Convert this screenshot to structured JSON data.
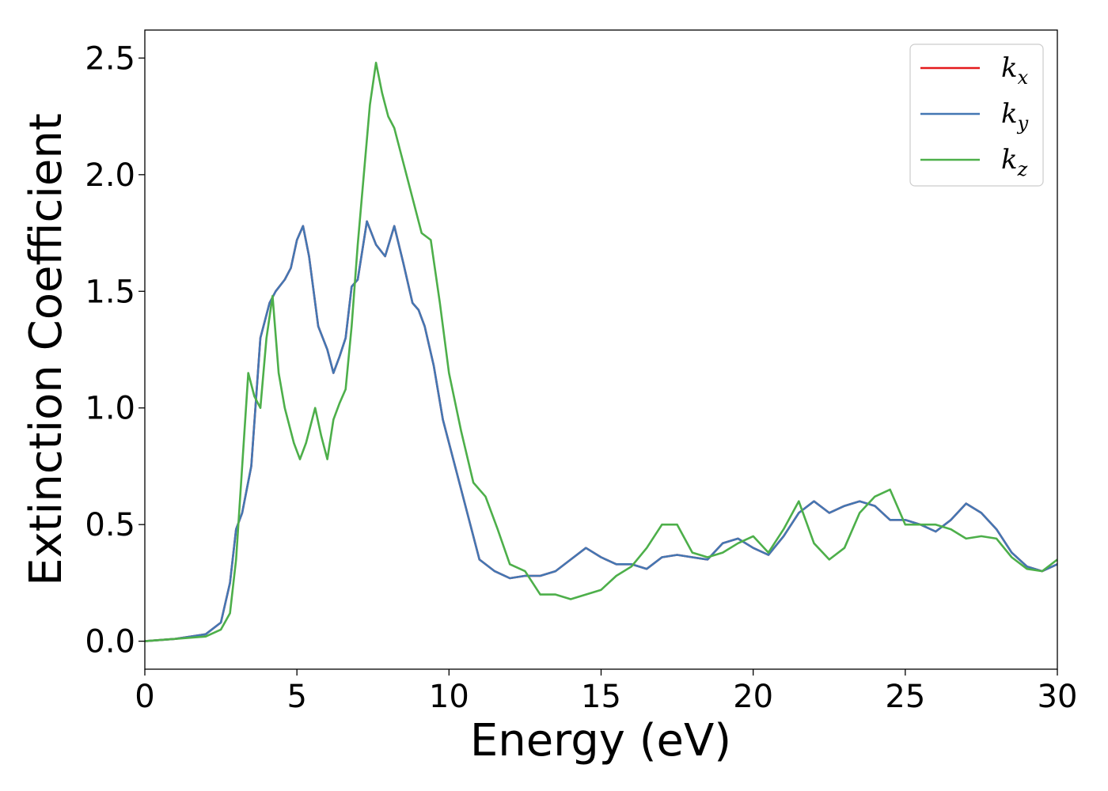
{
  "chart_data": {
    "type": "line",
    "xlabel": "Energy (eV)",
    "ylabel": "Extinction Coefficient",
    "xlim": [
      0,
      30
    ],
    "ylim": [
      -0.12,
      2.62
    ],
    "xticks": [
      0,
      5,
      10,
      15,
      20,
      25,
      30
    ],
    "xtick_labels": [
      "0",
      "5",
      "10",
      "15",
      "20",
      "25",
      "30"
    ],
    "yticks": [
      0.0,
      0.5,
      1.0,
      1.5,
      2.0,
      2.5
    ],
    "ytick_labels": [
      "0.0",
      "0.5",
      "1.0",
      "1.5",
      "2.0",
      "2.5"
    ],
    "grid": false,
    "legend_position": "top-right",
    "series": [
      {
        "name": "k_x",
        "legend_base": "k",
        "legend_sub": "x",
        "color": "#e41a1c",
        "x": [
          0,
          1,
          2,
          2.5,
          2.8,
          3.0,
          3.2,
          3.5,
          3.8,
          4.1,
          4.3,
          4.6,
          4.8,
          5.0,
          5.2,
          5.4,
          5.7,
          6.0,
          6.2,
          6.4,
          6.6,
          6.8,
          7.0,
          7.3,
          7.6,
          7.9,
          8.2,
          8.5,
          8.8,
          9.0,
          9.2,
          9.5,
          9.8,
          10.2,
          10.6,
          11.0,
          11.5,
          12.0,
          12.5,
          13.0,
          13.5,
          14.0,
          14.5,
          15.0,
          15.5,
          16.0,
          16.5,
          17.0,
          17.5,
          18.0,
          18.5,
          19.0,
          19.5,
          20.0,
          20.5,
          21.0,
          21.5,
          22.0,
          22.5,
          23.0,
          23.5,
          24.0,
          24.5,
          25.0,
          25.5,
          26.0,
          26.5,
          27.0,
          27.5,
          28.0,
          28.5,
          29.0,
          29.5,
          30.0
        ],
        "y": [
          0.0,
          0.01,
          0.03,
          0.08,
          0.25,
          0.48,
          0.55,
          0.75,
          1.3,
          1.45,
          1.5,
          1.55,
          1.6,
          1.72,
          1.78,
          1.65,
          1.35,
          1.25,
          1.15,
          1.22,
          1.3,
          1.52,
          1.55,
          1.8,
          1.7,
          1.65,
          1.78,
          1.62,
          1.45,
          1.42,
          1.35,
          1.18,
          0.95,
          0.75,
          0.55,
          0.35,
          0.3,
          0.27,
          0.28,
          0.28,
          0.3,
          0.35,
          0.4,
          0.36,
          0.33,
          0.33,
          0.31,
          0.36,
          0.37,
          0.36,
          0.35,
          0.42,
          0.44,
          0.4,
          0.37,
          0.45,
          0.55,
          0.6,
          0.55,
          0.58,
          0.6,
          0.58,
          0.52,
          0.52,
          0.5,
          0.47,
          0.52,
          0.59,
          0.55,
          0.48,
          0.38,
          0.32,
          0.3,
          0.33
        ]
      },
      {
        "name": "k_y",
        "legend_base": "k",
        "legend_sub": "y",
        "color": "#4377b3",
        "x": [
          0,
          1,
          2,
          2.5,
          2.8,
          3.0,
          3.2,
          3.5,
          3.8,
          4.1,
          4.3,
          4.6,
          4.8,
          5.0,
          5.2,
          5.4,
          5.7,
          6.0,
          6.2,
          6.4,
          6.6,
          6.8,
          7.0,
          7.3,
          7.6,
          7.9,
          8.2,
          8.5,
          8.8,
          9.0,
          9.2,
          9.5,
          9.8,
          10.2,
          10.6,
          11.0,
          11.5,
          12.0,
          12.5,
          13.0,
          13.5,
          14.0,
          14.5,
          15.0,
          15.5,
          16.0,
          16.5,
          17.0,
          17.5,
          18.0,
          18.5,
          19.0,
          19.5,
          20.0,
          20.5,
          21.0,
          21.5,
          22.0,
          22.5,
          23.0,
          23.5,
          24.0,
          24.5,
          25.0,
          25.5,
          26.0,
          26.5,
          27.0,
          27.5,
          28.0,
          28.5,
          29.0,
          29.5,
          30.0
        ],
        "y": [
          0.0,
          0.01,
          0.03,
          0.08,
          0.25,
          0.48,
          0.55,
          0.75,
          1.3,
          1.45,
          1.5,
          1.55,
          1.6,
          1.72,
          1.78,
          1.65,
          1.35,
          1.25,
          1.15,
          1.22,
          1.3,
          1.52,
          1.55,
          1.8,
          1.7,
          1.65,
          1.78,
          1.62,
          1.45,
          1.42,
          1.35,
          1.18,
          0.95,
          0.75,
          0.55,
          0.35,
          0.3,
          0.27,
          0.28,
          0.28,
          0.3,
          0.35,
          0.4,
          0.36,
          0.33,
          0.33,
          0.31,
          0.36,
          0.37,
          0.36,
          0.35,
          0.42,
          0.44,
          0.4,
          0.37,
          0.45,
          0.55,
          0.6,
          0.55,
          0.58,
          0.6,
          0.58,
          0.52,
          0.52,
          0.5,
          0.47,
          0.52,
          0.59,
          0.55,
          0.48,
          0.38,
          0.32,
          0.3,
          0.33
        ]
      },
      {
        "name": "k_z",
        "legend_base": "k",
        "legend_sub": "z",
        "color": "#4daf4a",
        "x": [
          0,
          1,
          2,
          2.5,
          2.8,
          3.0,
          3.2,
          3.4,
          3.6,
          3.8,
          4.0,
          4.2,
          4.4,
          4.6,
          4.9,
          5.1,
          5.3,
          5.6,
          5.8,
          6.0,
          6.2,
          6.4,
          6.6,
          6.8,
          7.0,
          7.2,
          7.4,
          7.6,
          7.8,
          8.0,
          8.2,
          8.5,
          8.8,
          9.1,
          9.4,
          9.7,
          10.0,
          10.4,
          10.8,
          11.2,
          11.6,
          12.0,
          12.5,
          13.0,
          13.5,
          14.0,
          14.5,
          15.0,
          15.5,
          16.0,
          16.5,
          17.0,
          17.5,
          18.0,
          18.5,
          19.0,
          19.5,
          20.0,
          20.5,
          21.0,
          21.5,
          22.0,
          22.5,
          23.0,
          23.5,
          24.0,
          24.5,
          25.0,
          25.5,
          26.0,
          26.5,
          27.0,
          27.5,
          28.0,
          28.5,
          29.0,
          29.5,
          30.0
        ],
        "y": [
          0.0,
          0.01,
          0.02,
          0.05,
          0.12,
          0.35,
          0.75,
          1.15,
          1.05,
          1.0,
          1.3,
          1.48,
          1.15,
          1.0,
          0.85,
          0.78,
          0.85,
          1.0,
          0.88,
          0.78,
          0.95,
          1.02,
          1.08,
          1.35,
          1.7,
          2.0,
          2.3,
          2.48,
          2.35,
          2.25,
          2.2,
          2.05,
          1.9,
          1.75,
          1.72,
          1.45,
          1.15,
          0.9,
          0.68,
          0.62,
          0.48,
          0.33,
          0.3,
          0.2,
          0.2,
          0.18,
          0.2,
          0.22,
          0.28,
          0.32,
          0.4,
          0.5,
          0.5,
          0.38,
          0.36,
          0.38,
          0.42,
          0.45,
          0.38,
          0.48,
          0.6,
          0.42,
          0.35,
          0.4,
          0.55,
          0.62,
          0.65,
          0.5,
          0.5,
          0.5,
          0.48,
          0.44,
          0.45,
          0.44,
          0.36,
          0.31,
          0.3,
          0.35
        ]
      }
    ]
  }
}
